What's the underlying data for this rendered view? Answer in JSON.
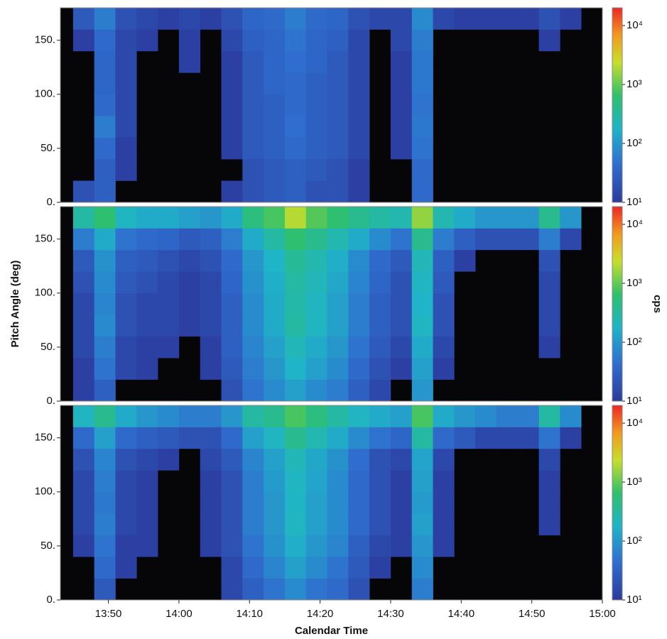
{
  "chart_data": [
    {
      "type": "heatmap",
      "x": [
        826.5,
        829.5,
        832.5,
        835.5,
        838.5,
        841.5,
        844.5,
        847.5,
        850.5,
        853.5,
        856.5,
        859.5,
        862.5,
        865.5,
        868.5,
        871.5,
        874.5,
        877.5,
        880.5,
        883.5,
        886.5,
        889.5,
        892.5,
        895.5,
        898.5
      ],
      "y": [
        10,
        30,
        50,
        70,
        90,
        110,
        130,
        150,
        170
      ],
      "z": [
        [
          20,
          30,
          null,
          null,
          null,
          null,
          null,
          12,
          20,
          25,
          30,
          20,
          20,
          12,
          null,
          null,
          40,
          null,
          null,
          null,
          null,
          null,
          null,
          null,
          null
        ],
        [
          null,
          30,
          12,
          null,
          null,
          null,
          null,
          null,
          20,
          25,
          30,
          25,
          20,
          12,
          null,
          null,
          40,
          null,
          null,
          null,
          null,
          null,
          null,
          null,
          null
        ],
        [
          null,
          40,
          12,
          null,
          null,
          null,
          null,
          12,
          25,
          30,
          40,
          30,
          25,
          15,
          null,
          12,
          50,
          null,
          null,
          null,
          null,
          null,
          null,
          null,
          null
        ],
        [
          null,
          60,
          15,
          null,
          null,
          null,
          null,
          12,
          25,
          30,
          45,
          30,
          25,
          15,
          null,
          12,
          55,
          null,
          null,
          null,
          null,
          null,
          null,
          null,
          null
        ],
        [
          null,
          40,
          15,
          null,
          null,
          null,
          null,
          12,
          25,
          30,
          40,
          30,
          25,
          15,
          null,
          12,
          50,
          null,
          null,
          null,
          null,
          null,
          null,
          null,
          null
        ],
        [
          null,
          35,
          15,
          null,
          null,
          null,
          null,
          12,
          25,
          35,
          40,
          30,
          25,
          15,
          null,
          12,
          55,
          null,
          null,
          null,
          null,
          null,
          null,
          null,
          null
        ],
        [
          null,
          35,
          15,
          null,
          null,
          12,
          null,
          12,
          25,
          35,
          45,
          35,
          25,
          15,
          null,
          12,
          55,
          null,
          null,
          null,
          null,
          null,
          null,
          null,
          null
        ],
        [
          12,
          40,
          15,
          12,
          null,
          12,
          null,
          15,
          30,
          35,
          50,
          35,
          30,
          15,
          null,
          15,
          60,
          null,
          null,
          null,
          null,
          null,
          12,
          null,
          null
        ],
        [
          25,
          60,
          20,
          15,
          12,
          15,
          12,
          20,
          35,
          40,
          60,
          40,
          35,
          20,
          15,
          15,
          80,
          15,
          12,
          12,
          12,
          12,
          20,
          12,
          null
        ]
      ],
      "ylim": [
        0,
        180
      ],
      "yticks": [
        {
          "value": 0,
          "label": "0."
        },
        {
          "value": 50,
          "label": "50."
        },
        {
          "value": 100,
          "label": "100."
        },
        {
          "value": 150,
          "label": "150."
        }
      ],
      "clim": [
        10,
        20000
      ],
      "log_color": true,
      "cticks": [
        {
          "value": 10,
          "label": "10¹"
        },
        {
          "value": 100,
          "label": "10²"
        },
        {
          "value": 1000,
          "label": "10³"
        },
        {
          "value": 10000,
          "label": "10⁴"
        }
      ],
      "xlim": [
        823.2,
        900
      ]
    },
    {
      "type": "heatmap",
      "x": [
        826.5,
        829.5,
        832.5,
        835.5,
        838.5,
        841.5,
        844.5,
        847.5,
        850.5,
        853.5,
        856.5,
        859.5,
        862.5,
        865.5,
        868.5,
        871.5,
        874.5,
        877.5,
        880.5,
        883.5,
        886.5,
        889.5,
        892.5,
        895.5,
        898.5
      ],
      "y": [
        10,
        30,
        50,
        70,
        90,
        110,
        130,
        150,
        170
      ],
      "z": [
        [
          12,
          30,
          null,
          null,
          null,
          null,
          null,
          20,
          50,
          80,
          120,
          80,
          60,
          30,
          15,
          null,
          100,
          null,
          null,
          null,
          null,
          null,
          null,
          null,
          null
        ],
        [
          12,
          50,
          15,
          12,
          null,
          null,
          12,
          25,
          60,
          100,
          180,
          120,
          80,
          40,
          20,
          12,
          120,
          12,
          null,
          null,
          null,
          null,
          null,
          null,
          null
        ],
        [
          15,
          60,
          15,
          12,
          12,
          null,
          12,
          30,
          70,
          120,
          220,
          150,
          100,
          50,
          25,
          15,
          150,
          15,
          null,
          null,
          null,
          null,
          12,
          null,
          null
        ],
        [
          15,
          80,
          20,
          15,
          15,
          12,
          15,
          30,
          80,
          150,
          300,
          200,
          120,
          60,
          30,
          20,
          200,
          20,
          null,
          null,
          null,
          null,
          15,
          null,
          null
        ],
        [
          15,
          70,
          20,
          15,
          15,
          12,
          15,
          30,
          80,
          150,
          280,
          200,
          120,
          60,
          30,
          20,
          180,
          20,
          null,
          null,
          null,
          null,
          15,
          null,
          null
        ],
        [
          20,
          80,
          25,
          20,
          15,
          12,
          15,
          35,
          90,
          160,
          300,
          220,
          140,
          70,
          35,
          20,
          200,
          25,
          null,
          null,
          null,
          null,
          15,
          null,
          null
        ],
        [
          25,
          90,
          30,
          25,
          20,
          15,
          20,
          40,
          100,
          180,
          350,
          250,
          160,
          80,
          40,
          25,
          220,
          30,
          12,
          null,
          null,
          null,
          20,
          null,
          null
        ],
        [
          60,
          150,
          50,
          40,
          35,
          25,
          30,
          60,
          150,
          300,
          600,
          400,
          250,
          150,
          80,
          50,
          400,
          60,
          30,
          20,
          20,
          20,
          60,
          15,
          null
        ],
        [
          300,
          600,
          200,
          150,
          150,
          120,
          100,
          150,
          500,
          800,
          2000,
          900,
          600,
          400,
          300,
          250,
          1500,
          250,
          150,
          100,
          100,
          100,
          400,
          100,
          null
        ]
      ],
      "ylim": [
        0,
        180
      ],
      "yticks": [
        {
          "value": 0,
          "label": "0."
        },
        {
          "value": 50,
          "label": "50."
        },
        {
          "value": 100,
          "label": "100."
        },
        {
          "value": 150,
          "label": "150."
        }
      ],
      "clim": [
        10,
        20000
      ],
      "log_color": true,
      "cticks": [
        {
          "value": 10,
          "label": "10¹"
        },
        {
          "value": 100,
          "label": "10²"
        },
        {
          "value": 1000,
          "label": "10³"
        },
        {
          "value": 10000,
          "label": "10⁴"
        }
      ],
      "xlim": [
        823.2,
        900
      ],
      "y_label": "Pitch Angle (deg)",
      "color_label": "cps"
    },
    {
      "type": "heatmap",
      "x": [
        826.5,
        829.5,
        832.5,
        835.5,
        838.5,
        841.5,
        844.5,
        847.5,
        850.5,
        853.5,
        856.5,
        859.5,
        862.5,
        865.5,
        868.5,
        871.5,
        874.5,
        877.5,
        880.5,
        883.5,
        886.5,
        889.5,
        892.5,
        895.5,
        898.5
      ],
      "y": [
        10,
        30,
        50,
        70,
        90,
        110,
        130,
        150,
        170
      ],
      "z": [
        [
          null,
          25,
          null,
          null,
          null,
          null,
          null,
          15,
          30,
          50,
          80,
          50,
          40,
          20,
          null,
          null,
          60,
          null,
          null,
          null,
          null,
          null,
          null,
          null,
          null
        ],
        [
          null,
          40,
          12,
          null,
          null,
          null,
          null,
          15,
          40,
          70,
          120,
          80,
          50,
          25,
          12,
          null,
          80,
          null,
          null,
          null,
          null,
          null,
          null,
          null,
          null
        ],
        [
          12,
          50,
          12,
          12,
          null,
          null,
          12,
          20,
          50,
          90,
          160,
          100,
          70,
          30,
          15,
          12,
          100,
          12,
          null,
          null,
          null,
          null,
          null,
          null,
          null
        ],
        [
          15,
          60,
          15,
          12,
          null,
          null,
          12,
          20,
          60,
          100,
          200,
          120,
          80,
          40,
          20,
          12,
          120,
          12,
          null,
          null,
          null,
          null,
          12,
          null,
          null
        ],
        [
          15,
          55,
          15,
          12,
          null,
          null,
          12,
          20,
          60,
          100,
          190,
          120,
          80,
          40,
          20,
          12,
          110,
          12,
          null,
          null,
          null,
          null,
          12,
          null,
          null
        ],
        [
          15,
          60,
          15,
          12,
          null,
          null,
          12,
          20,
          60,
          110,
          200,
          130,
          80,
          40,
          20,
          12,
          120,
          12,
          null,
          null,
          null,
          null,
          12,
          null,
          null
        ],
        [
          20,
          70,
          20,
          15,
          12,
          null,
          15,
          25,
          70,
          120,
          220,
          140,
          90,
          45,
          20,
          15,
          130,
          15,
          null,
          null,
          null,
          null,
          15,
          null,
          null
        ],
        [
          40,
          120,
          40,
          30,
          25,
          20,
          20,
          40,
          120,
          200,
          400,
          250,
          150,
          80,
          50,
          35,
          300,
          40,
          25,
          15,
          15,
          15,
          50,
          12,
          null
        ],
        [
          200,
          400,
          150,
          100,
          80,
          60,
          60,
          100,
          300,
          400,
          800,
          500,
          300,
          200,
          150,
          120,
          800,
          150,
          100,
          80,
          60,
          60,
          300,
          80,
          null
        ]
      ],
      "ylim": [
        0,
        180
      ],
      "yticks": [
        {
          "value": 0,
          "label": "0."
        },
        {
          "value": 50,
          "label": "50."
        },
        {
          "value": 100,
          "label": "100."
        },
        {
          "value": 150,
          "label": "150."
        }
      ],
      "clim": [
        10,
        20000
      ],
      "log_color": true,
      "cticks": [
        {
          "value": 10,
          "label": "10¹"
        },
        {
          "value": 100,
          "label": "10²"
        },
        {
          "value": 1000,
          "label": "10³"
        },
        {
          "value": 10000,
          "label": "10⁴"
        }
      ],
      "xlim": [
        823.2,
        900
      ],
      "xticks": [
        {
          "value": 830,
          "label": "13:50"
        },
        {
          "value": 840,
          "label": "14:00"
        },
        {
          "value": 850,
          "label": "14:10"
        },
        {
          "value": 860,
          "label": "14:20"
        },
        {
          "value": 870,
          "label": "14:30"
        },
        {
          "value": 880,
          "label": "14:40"
        },
        {
          "value": 890,
          "label": "14:50"
        },
        {
          "value": 900,
          "label": "15:00"
        }
      ],
      "x_label": "Calendar Time"
    }
  ]
}
